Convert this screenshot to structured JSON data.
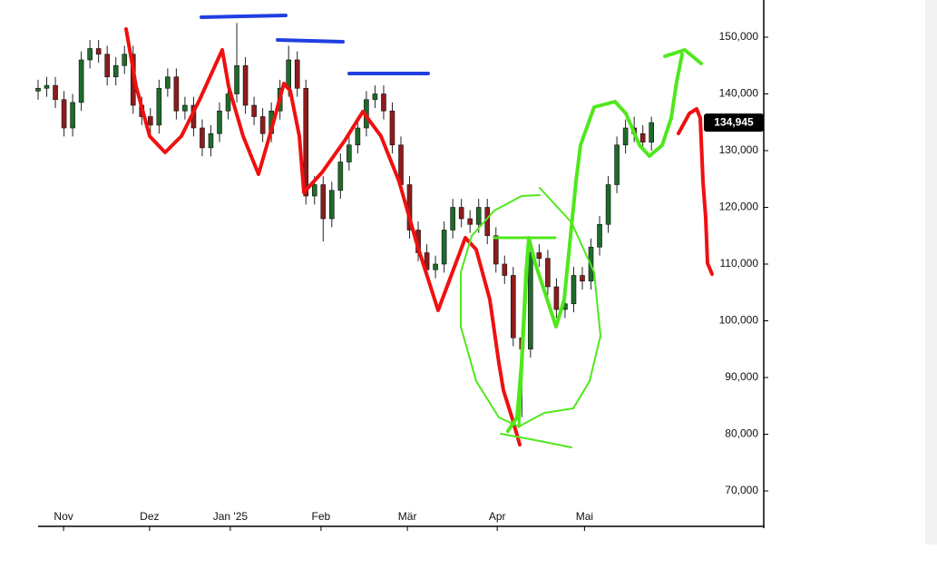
{
  "chart_data": {
    "type": "candlestick",
    "x": [
      0,
      2,
      4,
      6,
      8,
      10,
      12,
      14,
      16,
      18,
      20,
      22,
      24,
      26,
      28,
      30,
      32,
      34,
      36,
      38,
      40,
      42,
      44,
      46,
      48,
      50,
      52,
      54,
      56,
      58,
      60,
      62,
      64,
      66,
      68,
      70,
      72,
      74,
      76,
      78,
      80,
      82,
      84,
      86,
      88,
      90,
      92,
      94,
      96,
      98,
      100,
      102,
      104,
      106,
      108,
      110,
      112,
      114,
      116,
      118,
      120,
      122,
      124,
      126,
      128,
      130,
      132,
      134,
      136,
      138,
      140,
      142
    ],
    "open": [
      140500,
      141000,
      141500,
      139000,
      134000,
      138500,
      146000,
      148000,
      147000,
      143000,
      145000,
      147000,
      138000,
      136000,
      134500,
      141000,
      143000,
      137000,
      138000,
      134000,
      130500,
      133000,
      137000,
      140000,
      145000,
      138000,
      136000,
      133000,
      137000,
      141000,
      146000,
      141000,
      122000,
      124000,
      118000,
      123000,
      128000,
      131000,
      134000,
      139000,
      140000,
      137000,
      131000,
      124000,
      116000,
      112000,
      109000,
      110000,
      116000,
      120000,
      118000,
      117000,
      120000,
      115000,
      110000,
      108000,
      97000,
      95000,
      112000,
      111000,
      106000,
      102000,
      103000,
      108000,
      107000,
      113000,
      117000,
      124000,
      131000,
      134000,
      133000,
      131500
    ],
    "high": [
      142500,
      143000,
      143000,
      140500,
      140000,
      147500,
      149500,
      149500,
      148500,
      146500,
      148500,
      148500,
      139500,
      137500,
      142500,
      144500,
      144500,
      139500,
      139500,
      135500,
      134500,
      138500,
      141500,
      152500,
      146500,
      139500,
      137500,
      138500,
      142500,
      148500,
      147500,
      142500,
      125500,
      125500,
      124500,
      129500,
      132500,
      135500,
      140500,
      141500,
      141500,
      138500,
      132500,
      125500,
      117500,
      113500,
      111500,
      117500,
      121500,
      121500,
      119500,
      121500,
      121500,
      116500,
      111500,
      109500,
      98500,
      114000,
      113500,
      112500,
      107500,
      104500,
      109500,
      109500,
      114500,
      118500,
      125500,
      132500,
      135500,
      136000,
      134500,
      136000
    ],
    "low": [
      139000,
      139500,
      137500,
      132500,
      132500,
      137000,
      144500,
      145500,
      141500,
      141500,
      143500,
      136500,
      134500,
      133000,
      133000,
      139500,
      135500,
      135500,
      132500,
      129000,
      129000,
      131500,
      135500,
      138500,
      136500,
      134500,
      131500,
      131500,
      135500,
      139500,
      139500,
      120500,
      120500,
      114000,
      116500,
      121500,
      126500,
      129500,
      132500,
      137500,
      135500,
      129500,
      122500,
      114500,
      110500,
      107500,
      107500,
      108500,
      114500,
      116500,
      115500,
      115500,
      113500,
      108500,
      106500,
      95500,
      83000,
      93500,
      109500,
      104500,
      100500,
      100500,
      101500,
      105500,
      105500,
      111500,
      115500,
      122500,
      129500,
      131500,
      130000,
      130000
    ],
    "close": [
      141000,
      141500,
      139000,
      134000,
      138500,
      146000,
      148000,
      147000,
      143000,
      145000,
      147000,
      138000,
      136000,
      134500,
      141000,
      143000,
      137000,
      138000,
      134000,
      130500,
      133000,
      137000,
      140000,
      145000,
      138000,
      136000,
      133000,
      137000,
      141000,
      146000,
      141000,
      122000,
      124000,
      118000,
      123000,
      128000,
      131000,
      134000,
      139000,
      140000,
      137000,
      131000,
      124000,
      116000,
      112000,
      109000,
      110000,
      116000,
      120000,
      118000,
      117000,
      120000,
      115000,
      110000,
      108000,
      97000,
      95000,
      112000,
      111000,
      106000,
      102000,
      103000,
      108000,
      107000,
      113000,
      117000,
      124000,
      131000,
      134000,
      133000,
      131500,
      134945
    ],
    "up_color": "#1f6b2a",
    "down_color": "#8e1c1c",
    "xlim": [
      0,
      168
    ],
    "xticks": [
      {
        "value": 5.9,
        "label": "Nov"
      },
      {
        "value": 25.8,
        "label": "Dez"
      },
      {
        "value": 44.5,
        "label": "Jan '25"
      },
      {
        "value": 65.5,
        "label": "Feb"
      },
      {
        "value": 85.5,
        "label": "Mär"
      },
      {
        "value": 106.3,
        "label": "Apr"
      },
      {
        "value": 126.5,
        "label": "Mai"
      }
    ],
    "ylim": [
      63760,
      156560
    ],
    "yticks": [
      {
        "value": 70000,
        "label": "70,000"
      },
      {
        "value": 80000,
        "label": "80,000"
      },
      {
        "value": 90000,
        "label": "90,000"
      },
      {
        "value": 100000,
        "label": "100,000"
      },
      {
        "value": 110000,
        "label": "110,000"
      },
      {
        "value": 120000,
        "label": "120,000"
      },
      {
        "value": 130000,
        "label": "130,000"
      },
      {
        "value": 140000,
        "label": "140,000"
      },
      {
        "value": 150000,
        "label": "150,000"
      }
    ],
    "last_price": {
      "value": 134945,
      "label": "134,945"
    },
    "grid": false
  }
}
